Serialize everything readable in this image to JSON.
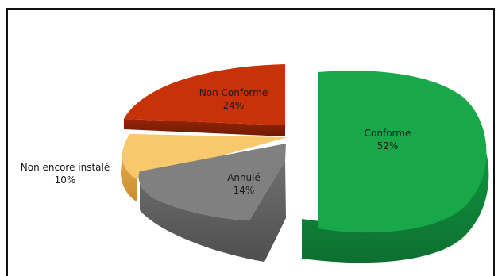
{
  "chart_data": {
    "type": "pie",
    "title": "",
    "slices": [
      {
        "label": "Conforme",
        "value": 52,
        "value_label": "52%",
        "color": "#18a84a",
        "side_color": "#0f7b35"
      },
      {
        "label": "Annulé",
        "value": 14,
        "value_label": "14%",
        "color": "#808080",
        "side_color": "#5f5f5f"
      },
      {
        "label": "Non encore instalé",
        "value": 10,
        "value_label": "10%",
        "color": "#f8c86c",
        "side_color": "#d99a36"
      },
      {
        "label": "Non Conforme",
        "value": 24,
        "value_label": "24%",
        "color": "#c83208",
        "side_color": "#8e2205"
      }
    ],
    "legend": "none",
    "exploded": true,
    "style": "3d"
  }
}
